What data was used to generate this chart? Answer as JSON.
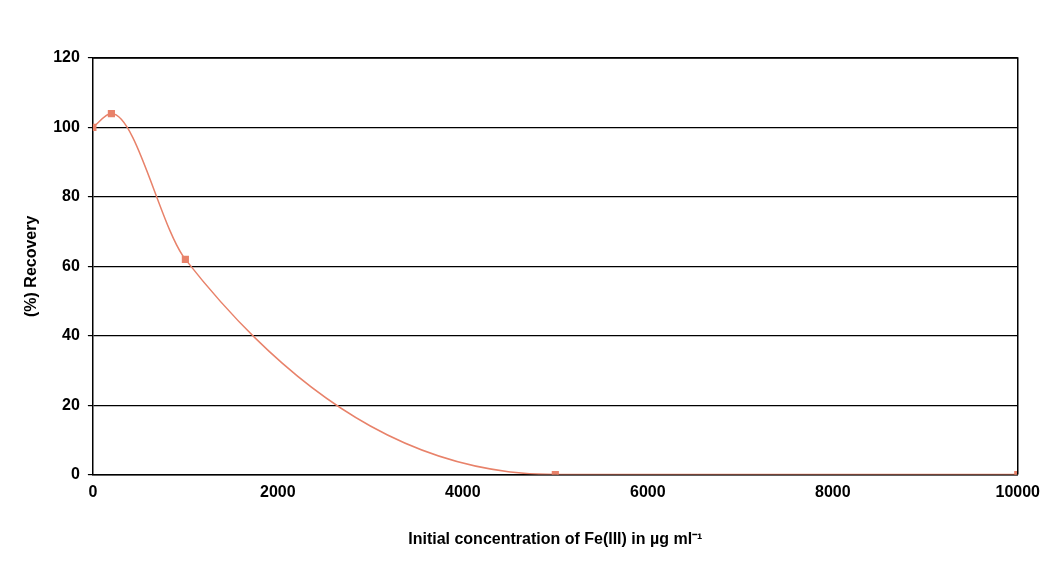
{
  "chart_data": {
    "type": "line",
    "xlabel": "Initial concentration of Fe(III) in µg ml⁻¹",
    "ylabel": "(%) Recovery",
    "x": [
      0,
      200,
      1000,
      5000,
      10000
    ],
    "series": [
      {
        "color": "#e8826a",
        "values": [
          100,
          104,
          62,
          0,
          0
        ]
      }
    ],
    "xlim": [
      0,
      10000
    ],
    "xticks": [
      0,
      2000,
      4000,
      6000,
      8000,
      10000
    ],
    "ylim": [
      0,
      120
    ],
    "yticks": [
      0,
      20,
      40,
      60,
      80,
      100,
      120
    ],
    "grid": "y",
    "legend": false,
    "marker": "square",
    "line_style": "solid"
  }
}
